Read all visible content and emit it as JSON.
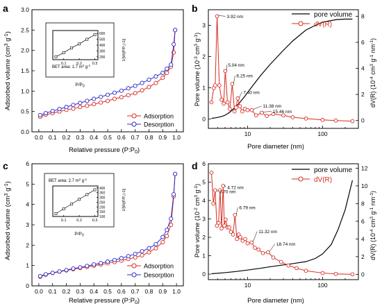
{
  "figure": {
    "panels": [
      {
        "id": "a",
        "label": "a",
        "type": "isotherm",
        "xlabel": "Relative pressure (P:P",
        "xlabel_sub": "0",
        "xlabel_tail": ")",
        "ylabel": "Adsorbed volume (cm",
        "ylabel_sup": "3",
        "ylabel_mid": " g",
        "ylabel_sup2": "-1",
        "ylabel_tail": ")",
        "xlim": [
          -0.05,
          1.05
        ],
        "ylim": [
          0,
          3.0
        ],
        "xticks": [
          "0.0",
          "0.1",
          "0.2",
          "0.3",
          "0.4",
          "0.5",
          "0.6",
          "0.7",
          "0.8",
          "0.9",
          "1.0"
        ],
        "yticks": [
          "0.0",
          "0.5",
          "1.0",
          "1.5",
          "2.0",
          "2.5",
          "3.0"
        ],
        "legend": [
          "Adsorption",
          "Desorption"
        ],
        "inset": {
          "text": "BET area: 1.7 m",
          "text_sup": "2",
          "text_mid": " g",
          "text_sup2": "-1",
          "xlabel": "P/P",
          "xlabel_sub": "0",
          "xticks": [
            "0.1",
            "0.2",
            "0.3"
          ],
          "yticks": [
            "200",
            "300",
            "400",
            "500",
            "600"
          ],
          "ylabel": "1/[W((P/P₀)-1)]"
        }
      },
      {
        "id": "b",
        "label": "b",
        "type": "psd",
        "xlabel": "Pore diameter (nm)",
        "ylabel_left": "Pore volume (10",
        "ylabel_left_sup": "-3",
        "ylabel_left_mid": " cm",
        "ylabel_left_sup2": "3",
        "ylabel_left_mid2": " g",
        "ylabel_left_sup3": "-1",
        "ylabel_left_tail": ")",
        "ylabel_right": "dV(R) (10",
        "ylabel_right_sup": "-4",
        "ylabel_right_mid": " cm",
        "ylabel_right_sup2": "3",
        "ylabel_right_mid2": " g",
        "ylabel_right_sup3": "-1",
        "ylabel_right_mid3": " nm",
        "ylabel_right_sup4": "-1",
        "ylabel_right_tail": ")",
        "xticks": [
          "10",
          "100"
        ],
        "yticks_left": [
          "0",
          "1",
          "2",
          "3"
        ],
        "yticks_right": [
          "0",
          "2",
          "4",
          "6",
          "8"
        ],
        "legend": [
          "pore volume",
          "dV(R)"
        ],
        "annotations": [
          "3.92 nm",
          "5.04 nm",
          "6.25 nm",
          "7.40 nm",
          "11.38 nm",
          "15.46 nm"
        ]
      },
      {
        "id": "c",
        "label": "c",
        "type": "isotherm",
        "xlabel": "Relative pressure (P:P",
        "xlabel_sub": "0",
        "xlabel_tail": ")",
        "ylabel": "Adsorbed volume (cm",
        "ylabel_sup": "3",
        "ylabel_mid": " g",
        "ylabel_sup2": "-1",
        "ylabel_tail": ")",
        "xticks": [
          "0.0",
          "0.1",
          "0.2",
          "0.3",
          "0.4",
          "0.5",
          "0.6",
          "0.7",
          "0.8",
          "0.9",
          "1.0"
        ],
        "yticks": [
          "0",
          "1",
          "2",
          "3",
          "4",
          "5",
          "6"
        ],
        "legend": [
          "Adsorption",
          "Desorption"
        ],
        "inset": {
          "text": "BET area: 2.7 m",
          "text_sup": "2",
          "text_mid": " g",
          "text_sup2": "-1",
          "xlabel": "P/P",
          "xlabel_sub": "0",
          "xticks": [
            "0.1",
            "0.2",
            "0.3"
          ],
          "yticks": [
            "100",
            "150",
            "200",
            "250",
            "300",
            "350",
            "400"
          ],
          "ylabel": "1/[W((P/P₀)-1)]"
        }
      },
      {
        "id": "d",
        "label": "d",
        "type": "psd",
        "xlabel": "Pore diameter (nm)",
        "ylabel_left": "Pore volume (10",
        "ylabel_left_sup": "-2",
        "ylabel_left_mid": " cm",
        "ylabel_left_sup2": "3",
        "ylabel_left_mid2": " g",
        "ylabel_left_sup3": "-1",
        "ylabel_left_tail": ")",
        "ylabel_right": "dV(R) (10",
        "ylabel_right_sup": "-4",
        "ylabel_right_mid": " cm",
        "ylabel_right_sup2": "3",
        "ylabel_right_mid2": " g",
        "ylabel_right_sup3": "-1",
        "ylabel_right_mid3": " nm",
        "ylabel_right_sup4": "-1",
        "ylabel_right_tail": ")",
        "xticks": [
          "10",
          "100"
        ],
        "yticks_left": [
          "0",
          "1",
          "2",
          "3",
          "4",
          "5",
          "6"
        ],
        "yticks_right": [
          "0",
          "2",
          "4",
          "6",
          "8",
          "10",
          "12"
        ],
        "legend": [
          "pore volume",
          "dV(R)"
        ],
        "annotations": [
          "3.70 nm",
          "4.72 nm",
          "6.79 nm",
          "11.32 nm",
          "18.74 nm"
        ]
      }
    ]
  },
  "colors": {
    "adsorption": "#d62b20",
    "desorption": "#2b2bc8",
    "pore_volume": "#000000",
    "dvr": "#d62b20"
  },
  "chart_data": [
    {
      "panel": "a",
      "type": "line",
      "xlabel": "Relative pressure (P:P0)",
      "ylabel": "Adsorbed volume (cm3 g-1)",
      "xlim": [
        -0.05,
        1.05
      ],
      "ylim": [
        0,
        3.0
      ],
      "series": [
        {
          "name": "Adsorption",
          "x": [
            0.01,
            0.05,
            0.1,
            0.15,
            0.2,
            0.25,
            0.3,
            0.35,
            0.4,
            0.45,
            0.5,
            0.55,
            0.6,
            0.65,
            0.7,
            0.75,
            0.8,
            0.85,
            0.9,
            0.93,
            0.96,
            0.98,
            0.99
          ],
          "y": [
            0.37,
            0.42,
            0.46,
            0.5,
            0.54,
            0.57,
            0.61,
            0.64,
            0.68,
            0.72,
            0.76,
            0.81,
            0.85,
            0.9,
            0.95,
            1.02,
            1.1,
            1.2,
            1.33,
            1.45,
            1.6,
            1.95,
            2.5
          ]
        },
        {
          "name": "Desorption",
          "x": [
            0.99,
            0.98,
            0.96,
            0.93,
            0.9,
            0.85,
            0.8,
            0.75,
            0.7,
            0.65,
            0.6,
            0.55,
            0.5,
            0.45,
            0.4,
            0.35,
            0.3,
            0.25,
            0.2,
            0.15,
            0.1,
            0.05,
            0.01
          ],
          "y": [
            2.5,
            2.15,
            1.65,
            1.55,
            1.45,
            1.36,
            1.28,
            1.2,
            1.13,
            1.07,
            1.01,
            0.96,
            0.91,
            0.86,
            0.81,
            0.76,
            0.71,
            0.66,
            0.61,
            0.56,
            0.51,
            0.46,
            0.41
          ]
        }
      ],
      "inset": {
        "x": [
          0.05,
          0.1,
          0.15,
          0.2,
          0.25,
          0.3
        ],
        "y": [
          200,
          270,
          350,
          420,
          500,
          580
        ],
        "xlim": [
          0.03,
          0.32
        ],
        "ylim": [
          150,
          650
        ]
      }
    },
    {
      "panel": "b",
      "type": "line",
      "xscale": "log",
      "xlabel": "Pore diameter (nm)",
      "ylabel": "Pore volume (10-3 cm3 g-1)",
      "y2label": "dV(R) (10-4 cm3 g-1 nm-1)",
      "xlim": [
        3,
        300
      ],
      "ylim": [
        -0.3,
        3.5
      ],
      "y2lim": [
        -0.6,
        8.5
      ],
      "series": [
        {
          "name": "pore volume",
          "axis": "left",
          "x": [
            3.3,
            3.8,
            4.5,
            5,
            5.5,
            6,
            7,
            8,
            9,
            10,
            12,
            15,
            20,
            30,
            40,
            60,
            80,
            100,
            150,
            200,
            250
          ],
          "y": [
            0.02,
            0.04,
            0.08,
            0.12,
            0.18,
            0.25,
            0.4,
            0.55,
            0.7,
            0.85,
            1.1,
            1.4,
            1.75,
            2.2,
            2.5,
            2.85,
            3.0,
            3.1,
            3.18,
            3.2,
            3.2
          ]
        },
        {
          "name": "dV(R)",
          "axis": "right",
          "x": [
            3.3,
            3.55,
            3.7,
            3.92,
            4.2,
            4.5,
            4.8,
            5.04,
            5.4,
            5.8,
            6.25,
            6.7,
            7.0,
            7.4,
            7.9,
            8.5,
            9.2,
            10,
            11.38,
            13,
            15.46,
            18,
            22,
            30,
            40,
            60,
            100,
            150,
            250
          ],
          "y": [
            1.4,
            2.5,
            2.7,
            8.0,
            2.7,
            1.6,
            1.3,
            3.8,
            1.4,
            0.9,
            2.8,
            0.7,
            1.0,
            1.7,
            1.1,
            0.7,
            0.9,
            0.8,
            0.8,
            0.4,
            0.6,
            0.35,
            0.5,
            0.4,
            0.25,
            0.15,
            0.05,
            0.0,
            -0.05
          ]
        }
      ],
      "peaks": [
        3.92,
        5.04,
        6.25,
        7.4,
        11.38,
        15.46
      ]
    },
    {
      "panel": "c",
      "type": "line",
      "xlabel": "Relative pressure (P:P0)",
      "ylabel": "Adsorbed volume (cm3 g-1)",
      "xlim": [
        -0.05,
        1.05
      ],
      "ylim": [
        0,
        6
      ],
      "series": [
        {
          "name": "Adsorption",
          "x": [
            0.01,
            0.05,
            0.1,
            0.15,
            0.2,
            0.25,
            0.3,
            0.35,
            0.4,
            0.45,
            0.5,
            0.55,
            0.6,
            0.65,
            0.7,
            0.75,
            0.8,
            0.85,
            0.9,
            0.93,
            0.96,
            0.98,
            0.99
          ],
          "y": [
            0.45,
            0.55,
            0.63,
            0.7,
            0.76,
            0.82,
            0.88,
            0.93,
            0.99,
            1.05,
            1.11,
            1.17,
            1.24,
            1.32,
            1.4,
            1.5,
            1.65,
            1.85,
            2.15,
            2.45,
            3.0,
            4.4,
            5.5
          ]
        },
        {
          "name": "Desorption",
          "x": [
            0.99,
            0.98,
            0.96,
            0.93,
            0.9,
            0.85,
            0.8,
            0.75,
            0.7,
            0.65,
            0.6,
            0.55,
            0.5,
            0.45,
            0.4,
            0.35,
            0.3,
            0.25,
            0.2,
            0.15,
            0.1,
            0.05,
            0.01
          ],
          "y": [
            5.5,
            4.5,
            3.3,
            2.75,
            2.4,
            2.05,
            1.85,
            1.7,
            1.57,
            1.46,
            1.36,
            1.27,
            1.19,
            1.12,
            1.05,
            0.98,
            0.91,
            0.85,
            0.78,
            0.71,
            0.64,
            0.57,
            0.48
          ]
        }
      ],
      "inset": {
        "x": [
          0.05,
          0.1,
          0.15,
          0.2,
          0.25,
          0.3
        ],
        "y": [
          130,
          180,
          230,
          280,
          330,
          380
        ],
        "xlim": [
          0.03,
          0.32
        ],
        "ylim": [
          100,
          420
        ]
      }
    },
    {
      "panel": "d",
      "type": "line",
      "xscale": "log",
      "xlabel": "Pore diameter (nm)",
      "ylabel": "Pore volume (10-2 cm3 g-1)",
      "y2label": "dV(R) (10-4 cm3 g-1 nm-1)",
      "xlim": [
        3,
        300
      ],
      "ylim": [
        -0.3,
        6.0
      ],
      "y2lim": [
        -0.6,
        12.5
      ],
      "series": [
        {
          "name": "pore volume",
          "axis": "left",
          "x": [
            3.3,
            5,
            7,
            10,
            15,
            20,
            30,
            40,
            60,
            80,
            100,
            130,
            160,
            200,
            250
          ],
          "y": [
            0.02,
            0.08,
            0.14,
            0.22,
            0.32,
            0.4,
            0.5,
            0.57,
            0.68,
            0.85,
            1.1,
            1.6,
            2.4,
            3.5,
            5.1
          ]
        },
        {
          "name": "dV(R)",
          "axis": "right",
          "x": [
            3.3,
            3.5,
            3.7,
            3.9,
            4.1,
            4.3,
            4.5,
            4.72,
            4.9,
            5.1,
            5.4,
            5.7,
            6.0,
            6.4,
            6.79,
            7.2,
            7.6,
            8.0,
            8.6,
            9.3,
            10,
            11.32,
            12.5,
            14,
            16,
            18.74,
            22,
            28,
            35,
            45,
            60,
            100,
            150,
            250
          ],
          "y": [
            11.5,
            8.0,
            9.5,
            5.5,
            5.8,
            9.5,
            5.2,
            10.0,
            5.5,
            6.2,
            5.3,
            5.3,
            4.8,
            4.5,
            6.7,
            4.0,
            4.5,
            4.2,
            3.8,
            4.0,
            3.5,
            3.6,
            3.0,
            2.8,
            2.4,
            2.5,
            1.9,
            1.4,
            1.0,
            0.7,
            0.4,
            0.15,
            0.05,
            0.0
          ]
        }
      ],
      "peaks": [
        3.7,
        4.72,
        6.79,
        11.32,
        18.74
      ]
    }
  ]
}
